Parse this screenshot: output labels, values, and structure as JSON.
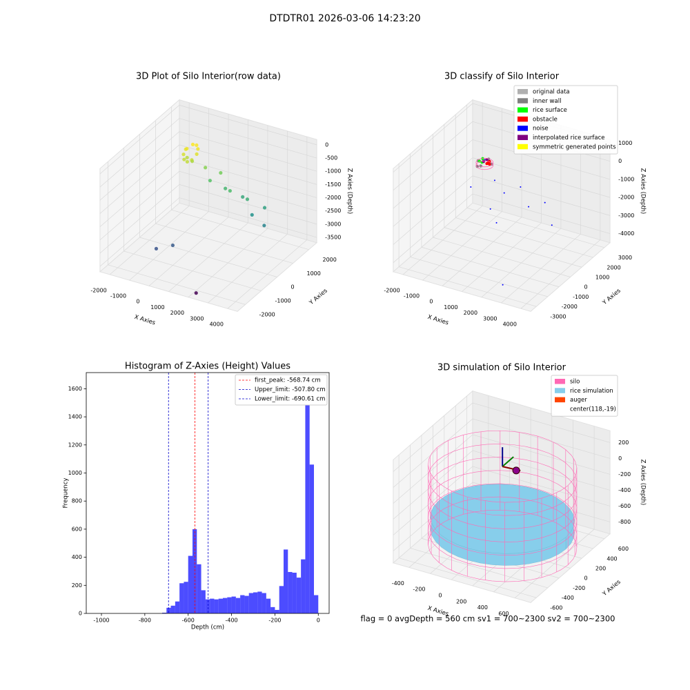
{
  "title": "DTDTR01 2026-03-06 14:23:20",
  "footer": "flag = 0     avgDepth = 560 cm  sv1 = 700~2300  sv2 = 700~2300",
  "chart_data": [
    {
      "type": "scatter3d",
      "title": "3D Plot of Silo Interior(row data)",
      "xlabel": "X Axies",
      "ylabel": "Y Axies",
      "zlabel": "Z Axies (Depth)",
      "xlim": [
        -2500,
        4500
      ],
      "ylim": [
        -2500,
        2500
      ],
      "zlim": [
        -3700,
        200
      ],
      "xticks": [
        -2000,
        -1000,
        0,
        1000,
        2000,
        3000,
        4000
      ],
      "yticks": [
        -2000,
        -1000,
        0,
        1000,
        2000
      ],
      "zticks": [
        0,
        -500,
        -1000,
        -1500,
        -2000,
        -2500,
        -3000,
        -3500
      ],
      "colormap": "viridis",
      "x": [
        -700,
        -600,
        -450,
        -300,
        -200,
        -250,
        -400,
        -600,
        -750,
        -800,
        -650,
        -350,
        200,
        600,
        900,
        1300,
        1700,
        2100,
        2500,
        2900,
        3300,
        3600,
        400,
        -200,
        2316
      ],
      "y": [
        750,
        1000,
        1050,
        950,
        750,
        500,
        400,
        450,
        600,
        800,
        700,
        650,
        800,
        600,
        900,
        700,
        500,
        800,
        600,
        400,
        700,
        300,
        -1500,
        -1800,
        -2400
      ],
      "z": [
        -350,
        -300,
        -320,
        -380,
        -450,
        -550,
        -600,
        -580,
        -500,
        -420,
        -650,
        -700,
        -900,
        -1200,
        -1000,
        -1400,
        -1300,
        -1600,
        -1500,
        -1900,
        -1700,
        -2100,
        -2600,
        -2700,
        -3525
      ]
    },
    {
      "type": "scatter3d",
      "title": "3D classify of Silo Interior",
      "xlabel": "X Axies",
      "ylabel": "Y Axies",
      "zlabel": "Z Axies (Depth)",
      "xlim": [
        -2500,
        4500
      ],
      "ylim": [
        -3500,
        3500
      ],
      "zlim": [
        -4500,
        1200
      ],
      "xticks": [
        -2000,
        -1000,
        0,
        1000,
        2000,
        3000,
        4000
      ],
      "yticks": [
        -3000,
        -2000,
        -1000,
        0,
        1000,
        2000,
        3000
      ],
      "zticks": [
        1000,
        0,
        -1000,
        -2000,
        -3000,
        -4000
      ],
      "legend": "upper right",
      "series": [
        {
          "name": "original data",
          "color": "#b0b0b0",
          "x": [
            -500,
            -300,
            -700
          ],
          "y": [
            1000,
            1200,
            900
          ],
          "z": [
            -250,
            -300,
            -200
          ]
        },
        {
          "name": "inner wall",
          "color": "#808080",
          "x": [
            -800,
            -150,
            -470,
            -470,
            -700,
            -250
          ],
          "y": [
            1050,
            1050,
            700,
            1400,
            800,
            1300
          ],
          "z": [
            -300,
            -300,
            -300,
            -300,
            -450,
            -450
          ]
        },
        {
          "name": "rice surface",
          "color": "#00ff00",
          "x": [
            -650,
            -550,
            -600
          ],
          "y": [
            900,
            950,
            1100
          ],
          "z": [
            -200,
            -250,
            -150
          ]
        },
        {
          "name": "obstacle",
          "color": "#ff0000",
          "x": [
            -300,
            -250,
            -350,
            -200
          ],
          "y": [
            950,
            1100,
            1200,
            1000
          ],
          "z": [
            -250,
            -200,
            -300,
            -280
          ]
        },
        {
          "name": "noise",
          "color": "#0000ff",
          "x": [
            -470,
            -400,
            300,
            900,
            1500,
            2200,
            2800,
            3500,
            1200,
            600,
            -800,
            2500
          ],
          "y": [
            1050,
            1100,
            600,
            400,
            800,
            300,
            700,
            100,
            -800,
            -300,
            400,
            -2500
          ],
          "z": [
            -150,
            -100,
            -800,
            -1200,
            -900,
            -1500,
            -1300,
            -2000,
            -2100,
            -1800,
            -1400,
            -4200
          ]
        },
        {
          "name": "interpolated rice surface",
          "color": "#800080",
          "x": [
            -500,
            -420
          ],
          "y": [
            1000,
            1150
          ],
          "z": [
            -220,
            -180
          ]
        },
        {
          "name": "symmetric generated points",
          "color": "#ffff00",
          "x": [],
          "y": [],
          "z": []
        }
      ]
    },
    {
      "type": "histogram",
      "title": "Histogram of Z-Axies (Height) Values",
      "xlabel": "Depth (cm)",
      "ylabel": "Frequency",
      "color": "#0000ff",
      "xlim": [
        -1070,
        50
      ],
      "ylim": [
        0,
        1715
      ],
      "xticks": [
        -1000,
        -800,
        -600,
        -400,
        -200,
        0
      ],
      "yticks": [
        0,
        200,
        400,
        600,
        800,
        1000,
        1200,
        1400,
        1600
      ],
      "bins": [
        -720,
        -700,
        -680,
        -660,
        -640,
        -620,
        -600,
        -580,
        -560,
        -540,
        -520,
        -500,
        -480,
        -460,
        -440,
        -420,
        -400,
        -380,
        -360,
        -340,
        -320,
        -300,
        -280,
        -260,
        -240,
        -220,
        -200,
        -180,
        -160,
        -140,
        -120,
        -100,
        -80,
        -60,
        -40,
        -20,
        0
      ],
      "counts": [
        5,
        40,
        55,
        85,
        215,
        225,
        410,
        600,
        350,
        165,
        100,
        105,
        100,
        105,
        110,
        115,
        120,
        110,
        130,
        125,
        145,
        150,
        155,
        145,
        105,
        45,
        25,
        195,
        455,
        295,
        290,
        255,
        385,
        1640,
        1060,
        130
      ],
      "lines": [
        {
          "name": "first_peak: -568.74 cm",
          "value": -568.74,
          "color": "#ff0000"
        },
        {
          "name": "Upper_limit: -507.80 cm",
          "value": -507.8,
          "color": "#0000cc"
        },
        {
          "name": "Lower_limit: -690.61 cm",
          "value": -690.61,
          "color": "#0000cc"
        }
      ],
      "legend": "upper right"
    },
    {
      "type": "silo3d",
      "title": "3D simulation of Silo Interior",
      "xlabel": "X Axies",
      "ylabel": "Y Axies",
      "zlabel": "Z Axies (Depth)",
      "xlim": [
        -550,
        750
      ],
      "ylim": [
        -700,
        700
      ],
      "zlim": [
        -950,
        350
      ],
      "xticks": [
        -400,
        -200,
        0,
        200,
        400,
        600
      ],
      "yticks": [
        -600,
        -400,
        -200,
        0,
        200,
        400,
        600
      ],
      "zticks": [
        200,
        0,
        -200,
        -400,
        -600,
        -800
      ],
      "center": [
        118,
        -19
      ],
      "silo": {
        "name": "silo",
        "color": "#ff69b4",
        "radius": 620,
        "bottom": -900,
        "top": 100
      },
      "rice": {
        "name": "rice simulation",
        "color": "#87ceeb",
        "radius": 600,
        "z": -560
      },
      "auger": {
        "name": "auger",
        "color": "#ff4500"
      },
      "center_label": "center(118,-19)",
      "legend": "upper right"
    }
  ]
}
